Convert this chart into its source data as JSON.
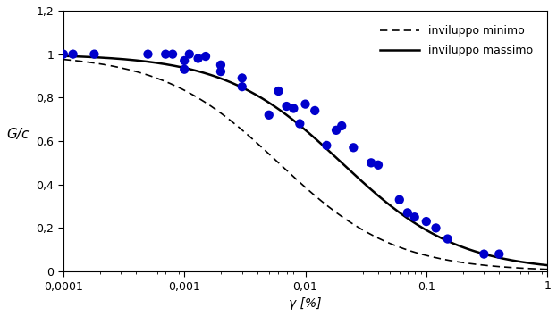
{
  "scatter_x": [
    0.0001,
    0.00012,
    0.00018,
    0.0005,
    0.0007,
    0.0008,
    0.001,
    0.001,
    0.0011,
    0.0013,
    0.0015,
    0.002,
    0.002,
    0.003,
    0.003,
    0.005,
    0.006,
    0.007,
    0.008,
    0.009,
    0.01,
    0.012,
    0.015,
    0.018,
    0.02,
    0.025,
    0.035,
    0.04,
    0.06,
    0.07,
    0.08,
    0.1,
    0.12,
    0.15,
    0.3,
    0.4
  ],
  "scatter_y": [
    1.0,
    1.0,
    1.0,
    1.0,
    1.0,
    1.0,
    0.97,
    0.93,
    1.0,
    0.98,
    0.99,
    0.95,
    0.92,
    0.89,
    0.85,
    0.72,
    0.83,
    0.76,
    0.75,
    0.68,
    0.77,
    0.74,
    0.58,
    0.65,
    0.67,
    0.57,
    0.5,
    0.49,
    0.33,
    0.27,
    0.25,
    0.23,
    0.2,
    0.15,
    0.08,
    0.08
  ],
  "scatter_color": "#0000cc",
  "scatter_size": 55,
  "min_ref": 0.006,
  "max_ref": 0.02,
  "alpha": 0.9,
  "xlim_min": 0.0001,
  "xlim_max": 1.0,
  "ylim_min": 0,
  "ylim_max": 1.2,
  "yticks": [
    0,
    0.2,
    0.4,
    0.6,
    0.8,
    1.0,
    1.2
  ],
  "xlabel": "γ [%]",
  "ylabel": "G/c",
  "legend_min": "inviluppo minimo",
  "legend_max": "inviluppo massimo",
  "line_color": "#000000",
  "background_color": "#ffffff",
  "xtick_labels": [
    "0,0001",
    "0,001",
    "0,01",
    "0,1",
    "1"
  ]
}
